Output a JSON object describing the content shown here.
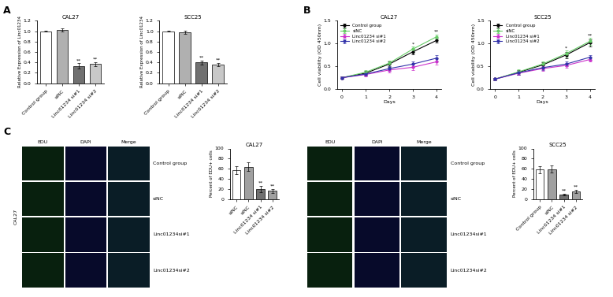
{
  "panel_labels": [
    "A",
    "B",
    "C"
  ],
  "chart_data": [
    {
      "type": "bar",
      "title": "CAL27",
      "y_label": "Relative Expression of Linc01234",
      "categories": [
        "Control group",
        "siNC",
        "Linc01234 si#1",
        "Linc01234 si#2"
      ],
      "values": [
        1.0,
        1.03,
        0.33,
        0.37
      ],
      "errors": [
        0.01,
        0.03,
        0.05,
        0.04
      ],
      "annotations": [
        null,
        null,
        "**",
        "**"
      ],
      "colors": [
        "#ffffff",
        "#b0b0b0",
        "#707070",
        "#c8c8c8"
      ],
      "ylim": [
        0.0,
        1.2
      ],
      "yticks": [
        0.0,
        0.2,
        0.4,
        0.6,
        0.8,
        1.0,
        1.2
      ]
    },
    {
      "type": "bar",
      "title": "SCC25",
      "y_label": "Relative Expression of Linc01234",
      "categories": [
        "Control group",
        "siNC",
        "Linc01234 si#1",
        "Linc01234 si#2"
      ],
      "values": [
        1.0,
        0.98,
        0.4,
        0.36
      ],
      "errors": [
        0.01,
        0.03,
        0.04,
        0.03
      ],
      "annotations": [
        null,
        null,
        "**",
        "**"
      ],
      "colors": [
        "#ffffff",
        "#b0b0b0",
        "#707070",
        "#c8c8c8"
      ],
      "ylim": [
        0.0,
        1.2
      ],
      "yticks": [
        0.0,
        0.2,
        0.4,
        0.6,
        0.8,
        1.0,
        1.2
      ]
    },
    {
      "type": "line",
      "title": "CAL27",
      "x_label": "Days",
      "y_label": "Cell viability (OD 450nm)",
      "x": [
        0,
        1,
        2,
        3,
        4
      ],
      "xlim": [
        -0.2,
        4.2
      ],
      "xticks": [
        0,
        1,
        2,
        3,
        4
      ],
      "ylim": [
        0.0,
        1.5
      ],
      "yticks": [
        0.0,
        0.5,
        1.0,
        1.5
      ],
      "legend": "upper left",
      "marker": "circle",
      "annotations": [
        null,
        null,
        null,
        "*",
        "**"
      ],
      "series": [
        {
          "name": "Control group",
          "color": "#000000",
          "values": [
            0.25,
            0.35,
            0.55,
            0.82,
            1.07
          ],
          "errors": [
            0.03,
            0.05,
            0.06,
            0.06,
            0.05
          ]
        },
        {
          "name": "siNC",
          "color": "#66cc66",
          "values": [
            0.25,
            0.37,
            0.57,
            0.88,
            1.15
          ],
          "errors": [
            0.03,
            0.05,
            0.06,
            0.06,
            0.05
          ]
        },
        {
          "name": "Linc01234 si#1",
          "color": "#cc33cc",
          "values": [
            0.25,
            0.32,
            0.42,
            0.48,
            0.6
          ],
          "errors": [
            0.03,
            0.04,
            0.05,
            0.06,
            0.07
          ]
        },
        {
          "name": "Linc01234 si#2",
          "color": "#3333aa",
          "values": [
            0.25,
            0.33,
            0.45,
            0.55,
            0.68
          ],
          "errors": [
            0.03,
            0.04,
            0.05,
            0.06,
            0.07
          ]
        }
      ]
    },
    {
      "type": "line",
      "title": "SCC25",
      "x_label": "Days",
      "y_label": "Cell viability (OD 450nm)",
      "x": [
        0,
        1,
        2,
        3,
        4
      ],
      "xlim": [
        -0.2,
        4.2
      ],
      "xticks": [
        0,
        1,
        2,
        3,
        4
      ],
      "ylim": [
        0.0,
        1.5
      ],
      "yticks": [
        0.0,
        0.5,
        1.0,
        1.5
      ],
      "legend": "upper left",
      "marker": "circle",
      "annotations": [
        null,
        null,
        null,
        "*",
        "**"
      ],
      "series": [
        {
          "name": "Control group",
          "color": "#000000",
          "values": [
            0.22,
            0.37,
            0.53,
            0.75,
            1.02
          ],
          "errors": [
            0.03,
            0.05,
            0.06,
            0.07,
            0.08
          ]
        },
        {
          "name": "siNC",
          "color": "#66cc66",
          "values": [
            0.22,
            0.38,
            0.55,
            0.78,
            1.05
          ],
          "errors": [
            0.03,
            0.05,
            0.06,
            0.07,
            0.08
          ]
        },
        {
          "name": "Linc01234 si#1",
          "color": "#cc33cc",
          "values": [
            0.22,
            0.35,
            0.45,
            0.52,
            0.65
          ],
          "errors": [
            0.03,
            0.04,
            0.05,
            0.05,
            0.05
          ]
        },
        {
          "name": "Linc01234 si#2",
          "color": "#3333aa",
          "values": [
            0.22,
            0.36,
            0.47,
            0.55,
            0.7
          ],
          "errors": [
            0.03,
            0.04,
            0.05,
            0.05,
            0.05
          ]
        }
      ]
    },
    {
      "type": "bar",
      "title": "CAL27",
      "y_label": "Percent of EDU+ cells",
      "categories": [
        "siNC",
        "siNC",
        "Linc01234 si#1",
        "Linc01234 si#2"
      ],
      "values": [
        57,
        64,
        20,
        16
      ],
      "errors": [
        8,
        8,
        6,
        4
      ],
      "annotations": [
        null,
        null,
        "**",
        "**"
      ],
      "colors": [
        "#ffffff",
        "#a0a0a0",
        "#707070",
        "#a0a0a0"
      ],
      "ylim": [
        0,
        100
      ],
      "yticks": [
        0,
        20,
        40,
        60,
        80,
        100
      ]
    },
    {
      "type": "bar",
      "title": "SCC25",
      "y_label": "Percent of EDU+ cells",
      "categories": [
        "Control group",
        "siNC",
        "Linc01234 si#1",
        "Linc01234 si#2"
      ],
      "values": [
        58,
        59,
        9,
        15
      ],
      "errors": [
        7,
        7,
        2,
        3
      ],
      "annotations": [
        null,
        null,
        "**",
        "**"
      ],
      "colors": [
        "#ffffff",
        "#a0a0a0",
        "#707070",
        "#a0a0a0"
      ],
      "ylim": [
        0,
        100
      ],
      "yticks": [
        0,
        20,
        40,
        60,
        80,
        100
      ]
    }
  ],
  "image_grids": [
    {
      "side_label": "CAL27",
      "columns": [
        "EDU",
        "DAPI",
        "Merge"
      ],
      "rows": [
        "Control group",
        "siNC",
        "Linc01234si#1",
        "Linc01234si#2"
      ]
    },
    {
      "columns": [
        "EDU",
        "DAPI",
        "Merge"
      ],
      "rows": [
        "Control group",
        "siNC",
        "Linc01234si#1",
        "Linc01234si#2"
      ]
    }
  ]
}
